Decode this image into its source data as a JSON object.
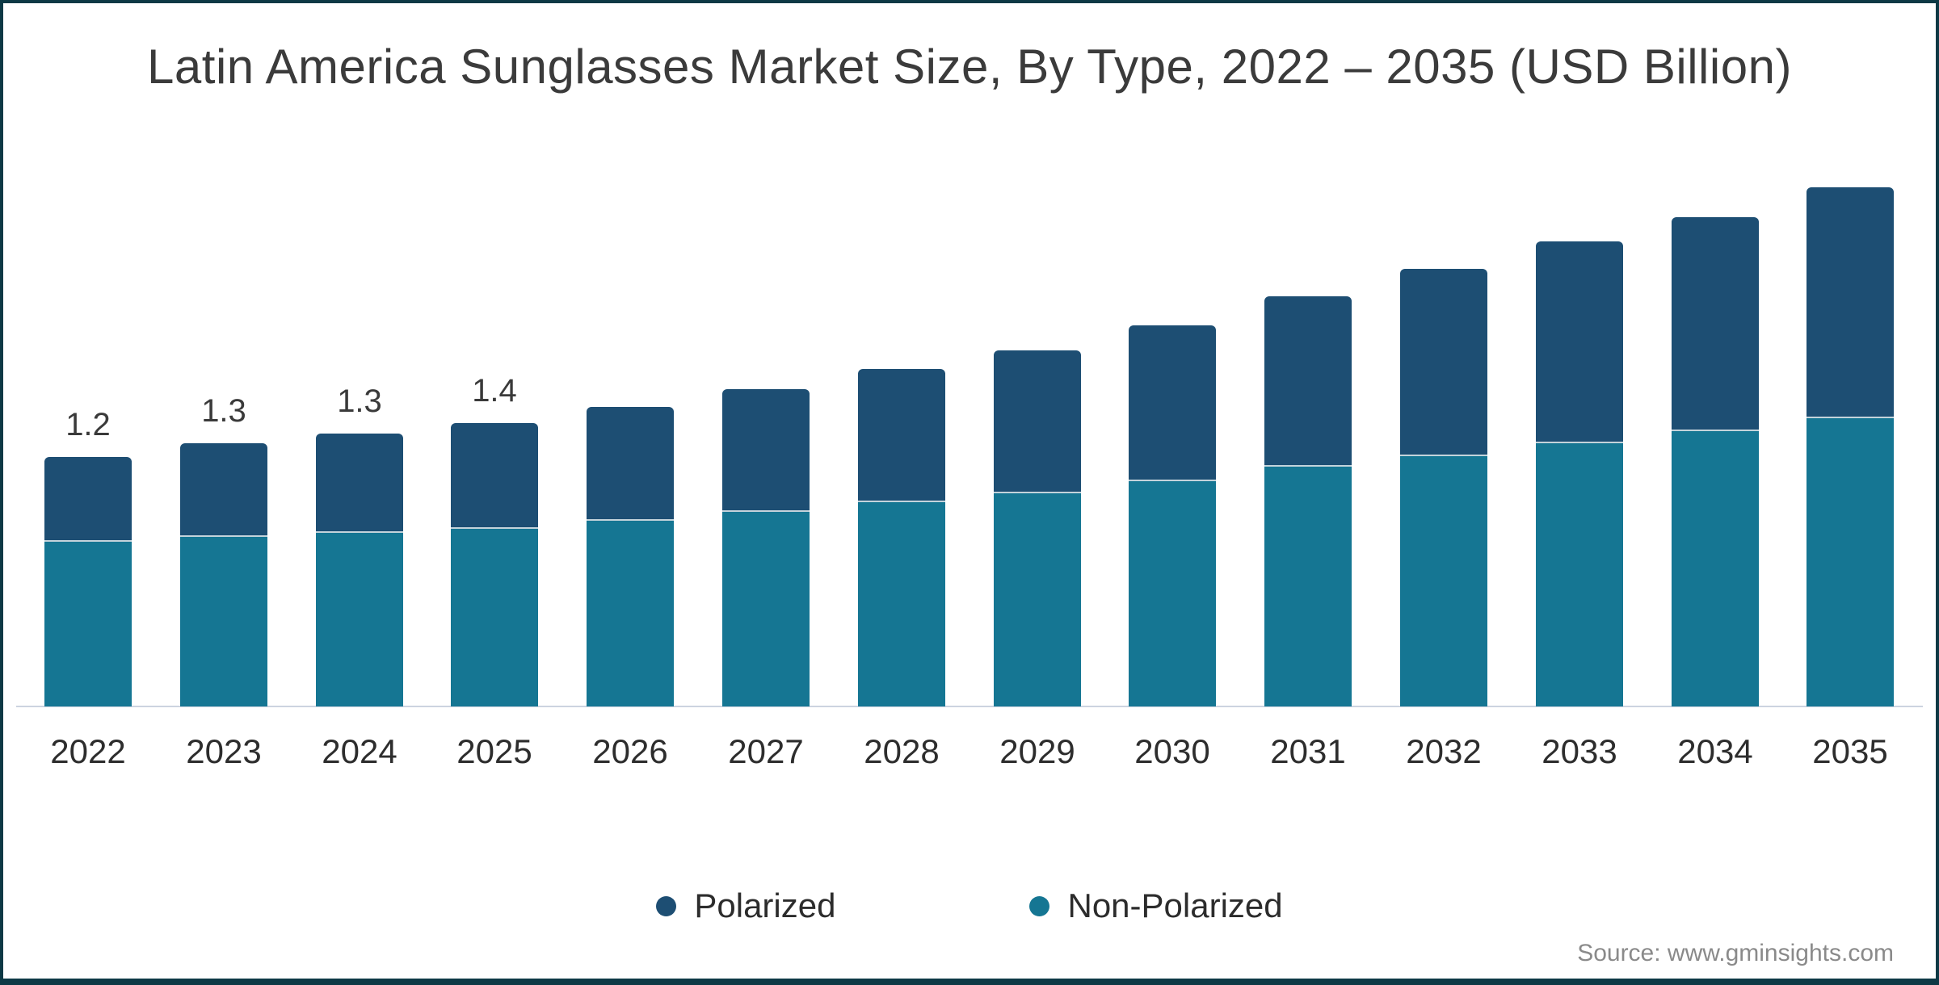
{
  "title": "Latin America Sunglasses Market Size, By Type, 2022 – 2035 (USD Billion)",
  "source": "Source: www.gminsights.com",
  "frame": {
    "border_color": "#0d3945"
  },
  "legend": [
    {
      "label": "Polarized",
      "color": "#1d4e73"
    },
    {
      "label": "Non-Polarized",
      "color": "#157693"
    }
  ],
  "chart_data": {
    "type": "bar",
    "stacked": true,
    "title": "Latin America Sunglasses Market Size, By Type, 2022 – 2035 (USD Billion)",
    "xlabel": "",
    "ylabel": "",
    "ylim": [
      0,
      2.6
    ],
    "grid": false,
    "legend_position": "bottom",
    "axis_line_color": "#ccd3e0",
    "categories": [
      "2022",
      "2023",
      "2024",
      "2025",
      "2026",
      "2027",
      "2028",
      "2029",
      "2030",
      "2031",
      "2032",
      "2033",
      "2034",
      "2035"
    ],
    "series": [
      {
        "name": "Polarized",
        "color": "#1d4e73",
        "values": [
          0.4,
          0.44,
          0.47,
          0.5,
          0.54,
          0.58,
          0.63,
          0.68,
          0.74,
          0.81,
          0.89,
          0.96,
          1.02,
          1.1
        ]
      },
      {
        "name": "Non-Polarized",
        "color": "#157693",
        "values": [
          0.8,
          0.82,
          0.84,
          0.86,
          0.9,
          0.94,
          0.99,
          1.03,
          1.09,
          1.16,
          1.21,
          1.27,
          1.33,
          1.39
        ]
      }
    ],
    "totals": [
      1.2,
      1.26,
      1.31,
      1.36,
      1.44,
      1.52,
      1.62,
      1.71,
      1.83,
      1.97,
      2.1,
      2.23,
      2.35,
      2.49
    ],
    "bar_labels": [
      "1.2",
      "1.3",
      "1.3",
      "1.4",
      "",
      "",
      "",
      "",
      "",
      "",
      "",
      "",
      "",
      ""
    ]
  }
}
